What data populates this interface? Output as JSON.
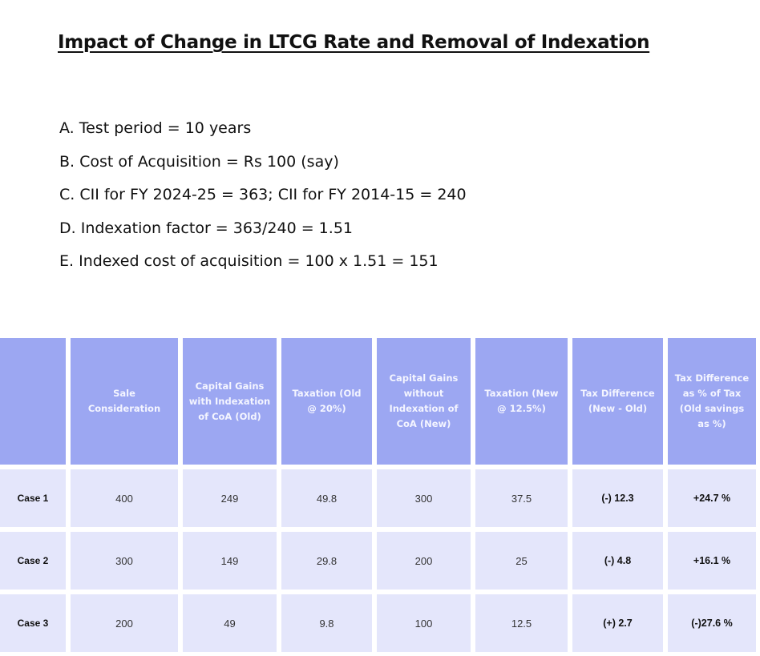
{
  "title": "Impact of Change in LTCG Rate and Removal of Indexation",
  "assumptions": [
    "A. Test period = 10 years",
    "B. Cost of Acquisition = Rs 100 (say)",
    "C. CII for FY 2024-25 = 363; CII for FY 2014-15 = 240",
    "D. Indexation factor = 363/240 = 1.51",
    "E. Indexed cost of acquisition = 100 x 1.51 = 151"
  ],
  "table": {
    "headers": [
      "",
      "Sale Consideration",
      "Capital Gains with Indexation of CoA (Old)",
      "Taxation (Old @ 20%)",
      "Capital Gains without Indexation of CoA (New)",
      "Taxation (New @ 12.5%)",
      "Tax Difference (New - Old)",
      "Tax Difference as % of Tax (Old savings as %)"
    ],
    "rows": [
      [
        "Case 1",
        "400",
        "249",
        "49.8",
        "300",
        "37.5",
        "(-) 12.3",
        "+24.7 %"
      ],
      [
        "Case 2",
        "300",
        "149",
        "29.8",
        "200",
        "25",
        "(-) 4.8",
        "+16.1 %"
      ],
      [
        "Case 3",
        "200",
        "49",
        "9.8",
        "100",
        "12.5",
        "(+) 2.7",
        "(-)27.6 %"
      ]
    ]
  },
  "colors": {
    "header_bg": "#9ca7f2",
    "header_text": "#f4f5ff",
    "body_bg": "#e4e6fb"
  }
}
